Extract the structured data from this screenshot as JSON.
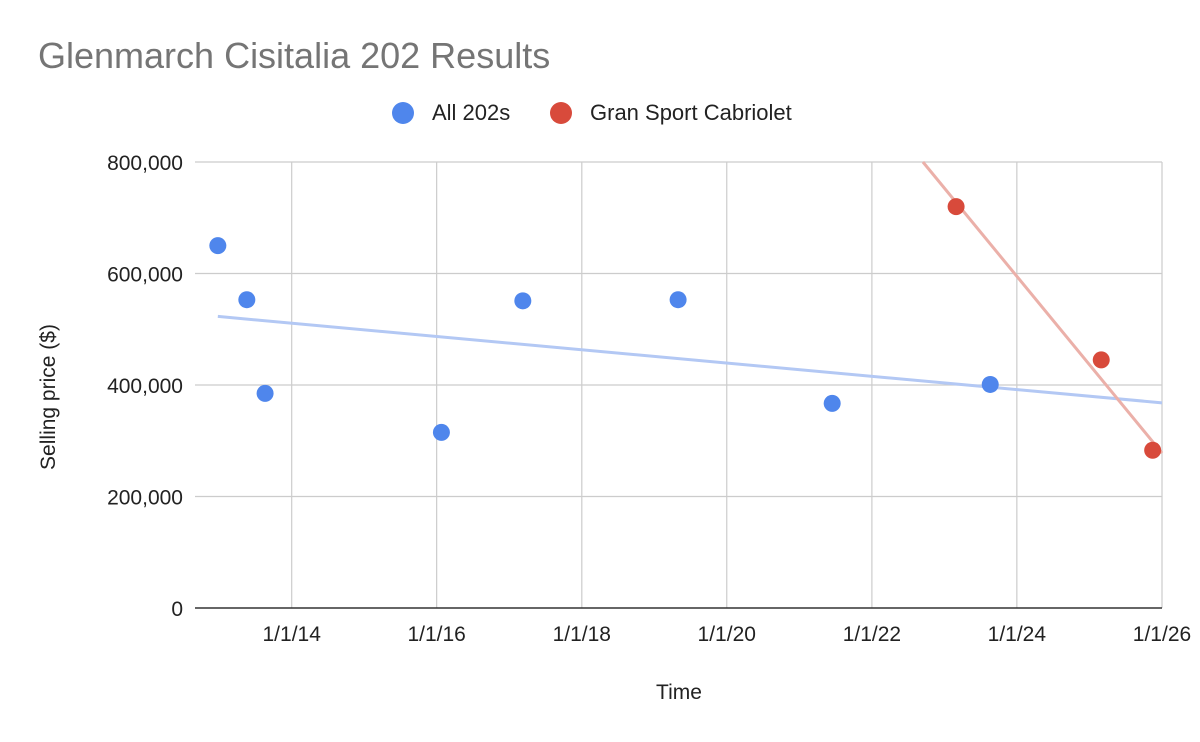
{
  "chart_data": {
    "type": "scatter",
    "title": "Glenmarch Cisitalia 202 Results",
    "xlabel": "Time",
    "ylabel": "Selling price ($)",
    "x_ticks": [
      "1/1/14",
      "1/1/16",
      "1/1/18",
      "1/1/20",
      "1/1/22",
      "1/1/24",
      "1/1/26"
    ],
    "y_ticks": [
      "0",
      "200,000",
      "400,000",
      "600,000",
      "800,000"
    ],
    "xlim": [
      "2012-09-01",
      "2026-01-01"
    ],
    "ylim": [
      0,
      800000
    ],
    "grid": true,
    "legend_position": "top-center",
    "series": [
      {
        "name": "All 202s",
        "color": "#4f86ec",
        "trendline_color": "#b3c8f4",
        "points": [
          {
            "x": "2012-12-25",
            "y": 650000
          },
          {
            "x": "2013-05-20",
            "y": 553000
          },
          {
            "x": "2013-08-20",
            "y": 385000
          },
          {
            "x": "2016-01-25",
            "y": 315000
          },
          {
            "x": "2017-03-10",
            "y": 551000
          },
          {
            "x": "2019-05-01",
            "y": 553000
          },
          {
            "x": "2021-06-15",
            "y": 367000
          },
          {
            "x": "2023-08-20",
            "y": 401000
          }
        ],
        "trendline": [
          {
            "x": "2012-12-25",
            "y": 523000
          },
          {
            "x": "2026-01-01",
            "y": 368000
          }
        ]
      },
      {
        "name": "Gran Sport Cabriolet",
        "color": "#d84a3b",
        "trendline_color": "#ebb0a9",
        "points": [
          {
            "x": "2023-03-01",
            "y": 720000
          },
          {
            "x": "2025-03-01",
            "y": 445000
          },
          {
            "x": "2025-11-15",
            "y": 283000
          }
        ],
        "trendline": [
          {
            "x": "2022-09-15",
            "y": 800000
          },
          {
            "x": "2026-01-01",
            "y": 278000
          }
        ]
      }
    ]
  }
}
